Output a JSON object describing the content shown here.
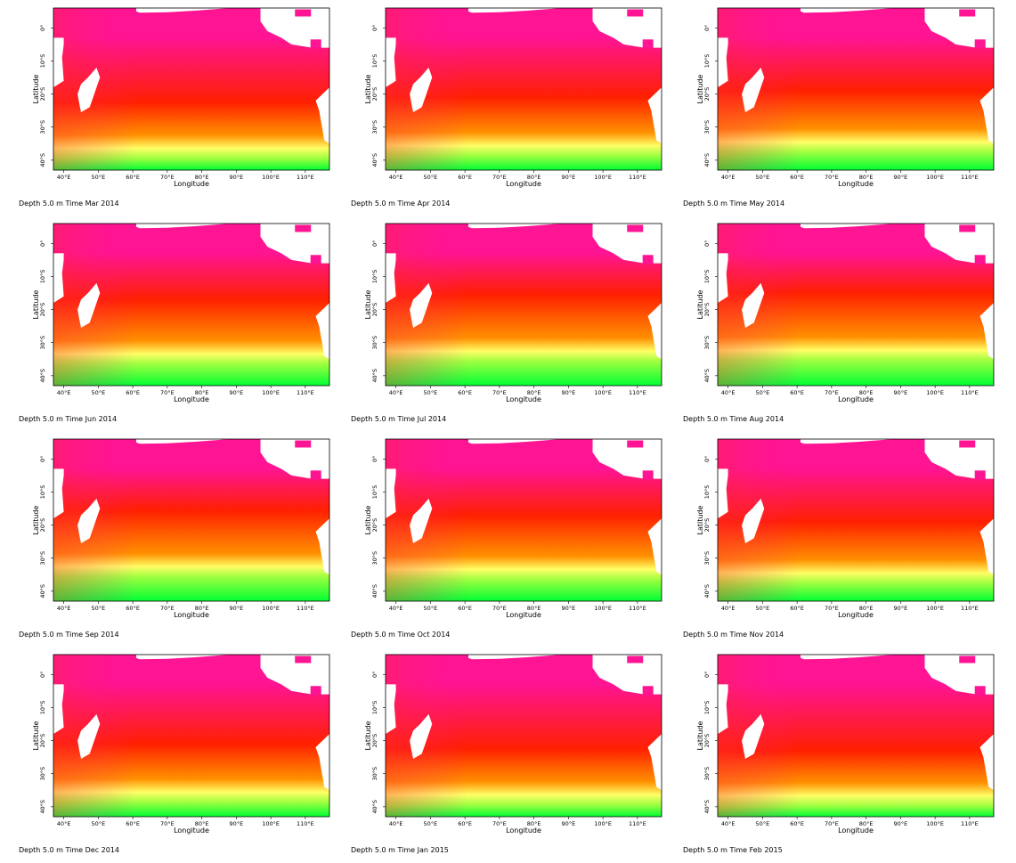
{
  "chart_data": [
    {
      "type": "heatmap",
      "caption": "",
      "xlabel": "Longitude",
      "ylabel": "Latitude",
      "month_index": 0
    },
    {
      "type": "heatmap",
      "caption": "",
      "xlabel": "Longitude",
      "ylabel": "Latitude",
      "month_index": 1
    },
    {
      "type": "heatmap",
      "caption": "",
      "xlabel": "Longitude",
      "ylabel": "Latitude",
      "month_index": 2
    },
    {
      "type": "heatmap",
      "caption": "Depth 5.0 m Time Mar 2014",
      "xlabel": "Longitude",
      "ylabel": "Latitude",
      "month_index": 3
    },
    {
      "type": "heatmap",
      "caption": "Depth 5.0 m Time Apr 2014",
      "xlabel": "Longitude",
      "ylabel": "Latitude",
      "month_index": 4
    },
    {
      "type": "heatmap",
      "caption": "Depth 5.0 m Time May 2014",
      "xlabel": "Longitude",
      "ylabel": "Latitude",
      "month_index": 5
    },
    {
      "type": "heatmap",
      "caption": "Depth 5.0 m Time Jun 2014",
      "xlabel": "Longitude",
      "ylabel": "Latitude",
      "month_index": 6
    },
    {
      "type": "heatmap",
      "caption": "Depth 5.0 m Time Jul 2014",
      "xlabel": "Longitude",
      "ylabel": "Latitude",
      "month_index": 7
    },
    {
      "type": "heatmap",
      "caption": "Depth 5.0 m Time Aug 2014",
      "xlabel": "Longitude",
      "ylabel": "Latitude",
      "month_index": 8
    },
    {
      "type": "heatmap",
      "caption": "Depth 5.0 m Time Sep 2014",
      "xlabel": "Longitude",
      "ylabel": "Latitude",
      "month_index": 9
    },
    {
      "type": "heatmap",
      "caption": "Depth 5.0 m Time Oct 2014",
      "xlabel": "Longitude",
      "ylabel": "Latitude",
      "month_index": 10
    },
    {
      "type": "heatmap",
      "caption": "Depth 5.0 m Time Nov 2014",
      "xlabel": "Longitude",
      "ylabel": "Latitude",
      "month_index": 11
    },
    {
      "type": "heatmap",
      "caption": "Depth 5.0 m Time Dec 2014",
      "xlabel": "Longitude",
      "ylabel": "Latitude",
      "month_index": 12
    },
    {
      "type": "heatmap",
      "caption": "Depth 5.0 m Time Jan 2015",
      "xlabel": "Longitude",
      "ylabel": "Latitude",
      "month_index": 13
    },
    {
      "type": "heatmap",
      "caption": "Depth 5.0 m Time Feb 2015",
      "xlabel": "Longitude",
      "ylabel": "Latitude",
      "month_index": 14
    }
  ],
  "axes": {
    "x_ticks": [
      "40°E",
      "50°E",
      "60°E",
      "70°E",
      "80°E",
      "90°E",
      "100°E",
      "110°E"
    ],
    "x_tick_values": [
      40,
      50,
      60,
      70,
      80,
      90,
      100,
      110
    ],
    "y_ticks": [
      "0°",
      "10°S",
      "20°S",
      "30°S",
      "40°S"
    ],
    "y_tick_values": [
      0,
      -10,
      -20,
      -30,
      -40
    ],
    "xlim": [
      37,
      117
    ],
    "ylim": [
      -43,
      6
    ]
  },
  "colors": {
    "warm": "#ff1493",
    "mid": "#ff2000",
    "cool": "#ffff66",
    "cold": "#00ff33",
    "land": "#ffffff"
  }
}
